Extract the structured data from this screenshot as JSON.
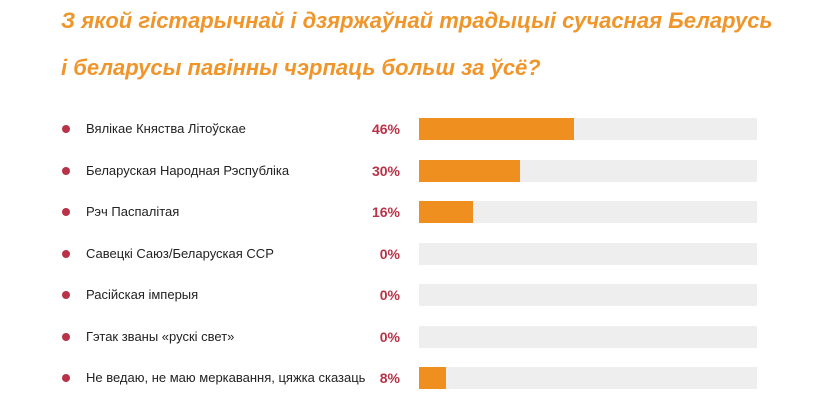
{
  "chart_data": {
    "type": "bar",
    "orientation": "horizontal",
    "title_lines": [
      "З якой гістарычнай і дзяржаўнай традыцыі сучасная Беларусь",
      "і беларусы павінны чэрпаць больш за ўсё?"
    ],
    "categories": [
      "Вялікае Княства Літоўскае",
      "Беларуская Народная Рэспубліка",
      "Рэч Паспалітая",
      "Савецкі Саюз/Беларуская ССР",
      "Расійская імперыя",
      "Гэтак званы «рускі свет»",
      "Не ведаю, не маю меркавання, цяжка сказаць"
    ],
    "values": [
      46,
      30,
      16,
      0,
      0,
      0,
      8
    ],
    "value_labels": [
      "46%",
      "30%",
      "16%",
      "0%",
      "0%",
      "0%",
      "8%"
    ],
    "xlim": [
      0,
      100
    ],
    "unit": "%",
    "grid": false,
    "legend": "none",
    "colors": {
      "title": "#f0952a",
      "bar": "#ee8f1f",
      "track": "#eeeeee",
      "value": "#b83248",
      "bullet": "#b83248",
      "label": "#222222"
    }
  }
}
